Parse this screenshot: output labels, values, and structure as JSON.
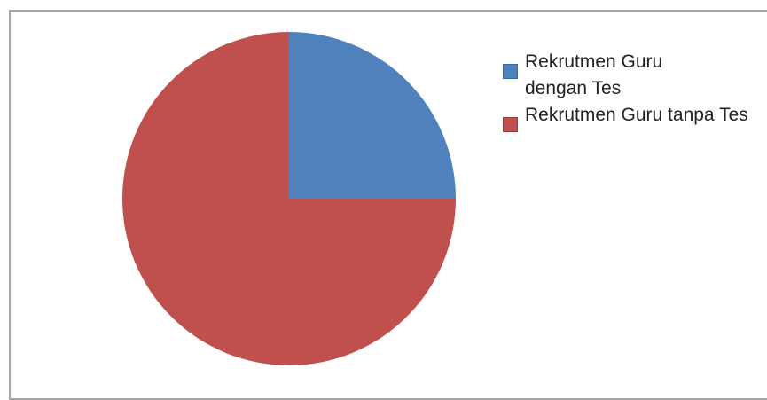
{
  "chart_data": {
    "type": "pie",
    "title": "",
    "series": [
      {
        "labels": [
          "Rekrutmen Guru dengan Tes",
          "Rekrutmen Guru tanpa Tes"
        ],
        "values": [
          25,
          75
        ],
        "colors": [
          "#4f81bd",
          "#c0504d"
        ]
      }
    ],
    "start_angle_deg": -90,
    "direction": "clockwise",
    "legend_position": "right",
    "legend": [
      "Rekrutmen Guru dengan Tes",
      "Rekrutmen Guru tanpa Tes"
    ]
  }
}
